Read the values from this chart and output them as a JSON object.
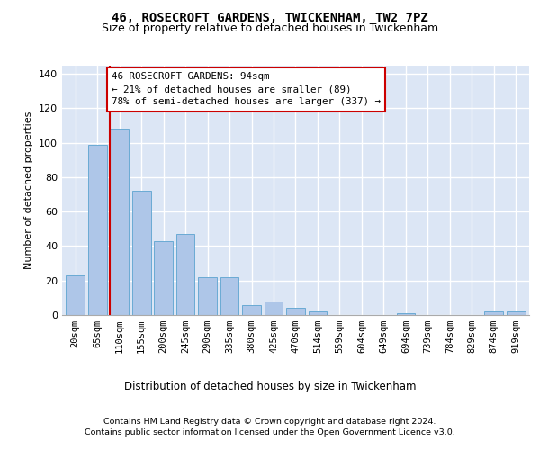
{
  "title_line1": "46, ROSECROFT GARDENS, TWICKENHAM, TW2 7PZ",
  "title_line2": "Size of property relative to detached houses in Twickenham",
  "xlabel": "Distribution of detached houses by size in Twickenham",
  "ylabel": "Number of detached properties",
  "categories": [
    "20sqm",
    "65sqm",
    "110sqm",
    "155sqm",
    "200sqm",
    "245sqm",
    "290sqm",
    "335sqm",
    "380sqm",
    "425sqm",
    "470sqm",
    "514sqm",
    "559sqm",
    "604sqm",
    "649sqm",
    "694sqm",
    "739sqm",
    "784sqm",
    "829sqm",
    "874sqm",
    "919sqm"
  ],
  "values": [
    23,
    99,
    108,
    72,
    43,
    47,
    22,
    22,
    6,
    8,
    4,
    2,
    0,
    0,
    0,
    1,
    0,
    0,
    0,
    2,
    2
  ],
  "bar_color": "#aec6e8",
  "bar_edge_color": "#6aaad4",
  "vline_color": "#cc0000",
  "vline_x": 1.58,
  "annotation_text": "46 ROSECROFT GARDENS: 94sqm\n← 21% of detached houses are smaller (89)\n78% of semi-detached houses are larger (337) →",
  "ylim": [
    0,
    145
  ],
  "yticks": [
    0,
    20,
    40,
    60,
    80,
    100,
    120,
    140
  ],
  "plot_bg": "#dce6f5",
  "grid_color": "#ffffff",
  "footer_line1": "Contains HM Land Registry data © Crown copyright and database right 2024.",
  "footer_line2": "Contains public sector information licensed under the Open Government Licence v3.0."
}
